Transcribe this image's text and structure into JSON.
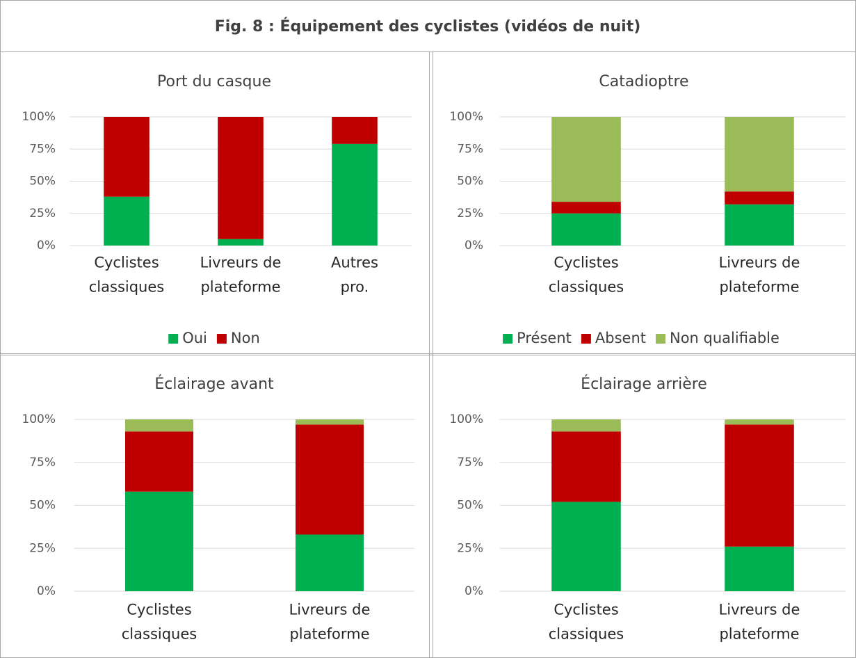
{
  "title": "Fig. 8 : Équipement des cyclistes (vidéos de nuit)",
  "chart_data": [
    {
      "type": "bar",
      "stacked": true,
      "title": "Port du casque",
      "categories": [
        "Cyclistes\nclassiques",
        "Livreurs de\nplateforme",
        "Autres\npro."
      ],
      "series": [
        {
          "name": "Oui",
          "color": "#00b050",
          "values": [
            38,
            5,
            79
          ]
        },
        {
          "name": "Non",
          "color": "#c00000",
          "values": [
            62,
            95,
            21
          ]
        }
      ],
      "ylim": [
        0,
        100
      ],
      "yticks": [
        {
          "value": 0,
          "label": "0%"
        },
        {
          "value": 25,
          "label": "25%"
        },
        {
          "value": 50,
          "label": "50%"
        },
        {
          "value": 75,
          "label": "75%"
        },
        {
          "value": 100,
          "label": "100%"
        }
      ],
      "grid": true,
      "legend": "bottom"
    },
    {
      "type": "bar",
      "stacked": true,
      "title": "Catadioptre",
      "categories": [
        "Cyclistes\nclassiques",
        "Livreurs de\nplateforme"
      ],
      "series": [
        {
          "name": "Présent",
          "color": "#00b050",
          "values": [
            25,
            32
          ]
        },
        {
          "name": "Absent",
          "color": "#c00000",
          "values": [
            9,
            10
          ]
        },
        {
          "name": "Non qualifiable",
          "color": "#9bbb59",
          "values": [
            66,
            58
          ]
        }
      ],
      "ylim": [
        0,
        100
      ],
      "yticks": [
        {
          "value": 0,
          "label": "0%"
        },
        {
          "value": 25,
          "label": "25%"
        },
        {
          "value": 50,
          "label": "50%"
        },
        {
          "value": 75,
          "label": "75%"
        },
        {
          "value": 100,
          "label": "100%"
        }
      ],
      "grid": true,
      "legend": "bottom"
    },
    {
      "type": "bar",
      "stacked": true,
      "title": "Éclairage avant",
      "categories": [
        "Cyclistes\nclassiques",
        "Livreurs de\nplateforme"
      ],
      "series": [
        {
          "name": "Présent",
          "color": "#00b050",
          "values": [
            58,
            33
          ]
        },
        {
          "name": "Absent",
          "color": "#c00000",
          "values": [
            35,
            64
          ]
        },
        {
          "name": "Non qualifiable",
          "color": "#9bbb59",
          "values": [
            7,
            3
          ]
        }
      ],
      "ylim": [
        0,
        100
      ],
      "yticks": [
        {
          "value": 0,
          "label": "0%"
        },
        {
          "value": 25,
          "label": "25%"
        },
        {
          "value": 50,
          "label": "50%"
        },
        {
          "value": 75,
          "label": "75%"
        },
        {
          "value": 100,
          "label": "100%"
        }
      ],
      "grid": true
    },
    {
      "type": "bar",
      "stacked": true,
      "title": "Éclairage arrière",
      "categories": [
        "Cyclistes\nclassiques",
        "Livreurs de\nplateforme"
      ],
      "series": [
        {
          "name": "Présent",
          "color": "#00b050",
          "values": [
            52,
            26
          ]
        },
        {
          "name": "Absent",
          "color": "#c00000",
          "values": [
            41,
            71
          ]
        },
        {
          "name": "Non qualifiable",
          "color": "#9bbb59",
          "values": [
            7,
            3
          ]
        }
      ],
      "ylim": [
        0,
        100
      ],
      "yticks": [
        {
          "value": 0,
          "label": "0%"
        },
        {
          "value": 25,
          "label": "25%"
        },
        {
          "value": 50,
          "label": "50%"
        },
        {
          "value": 75,
          "label": "75%"
        },
        {
          "value": 100,
          "label": "100%"
        }
      ],
      "grid": true
    }
  ]
}
